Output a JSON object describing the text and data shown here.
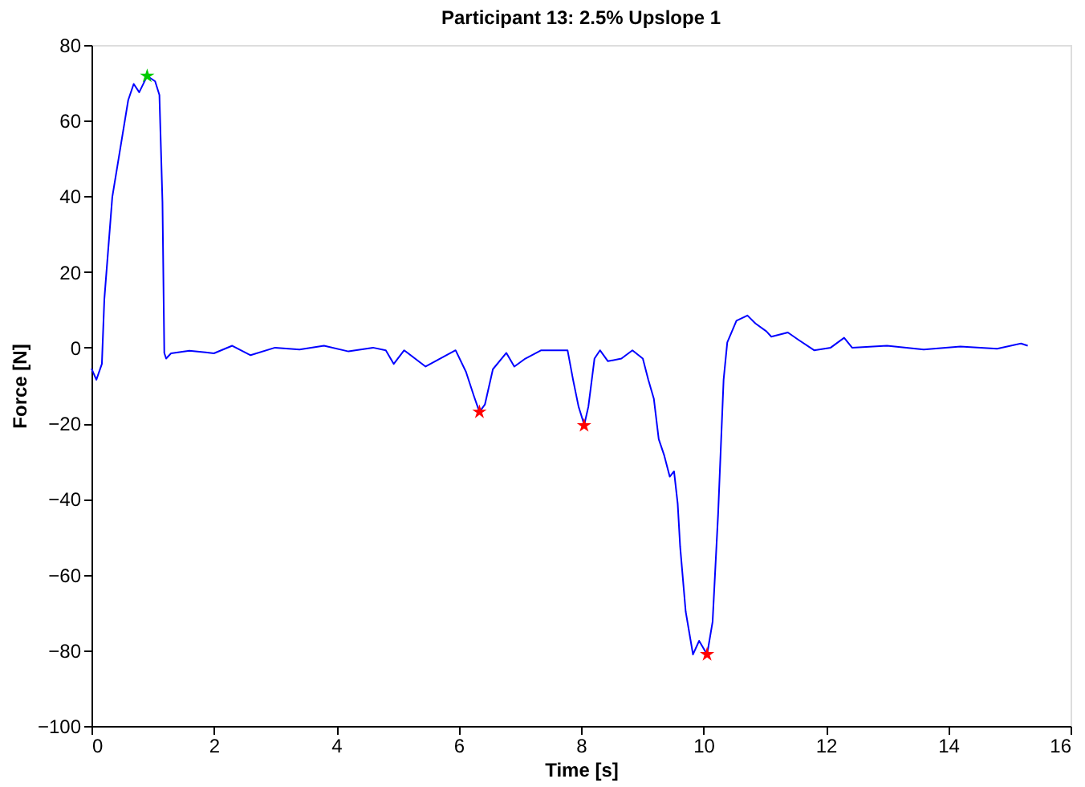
{
  "chart_data": {
    "type": "line",
    "title": "Participant 13: 2.5% Upslope 1",
    "xlabel": "Time [s]",
    "ylabel": "Force [N]",
    "xlim": [
      0,
      16
    ],
    "xticks": [
      0,
      2,
      4,
      6,
      8,
      10,
      12,
      14,
      16
    ],
    "ylim": [
      -100,
      80
    ],
    "yticks": [
      -100,
      -80,
      -60,
      -40,
      -20,
      0,
      20,
      40,
      60,
      80
    ],
    "grid": false,
    "legend": false,
    "series": [
      {
        "type": "line",
        "color": "#0000ff",
        "marker": "none",
        "line_style": "solid",
        "x": [
          0,
          0.08,
          0.17,
          0.21,
          0.34,
          0.47,
          0.6,
          0.69,
          0.78,
          0.91,
          1.04,
          1.11,
          1.16,
          1.19,
          1.22,
          1.3,
          1.6,
          2.0,
          2.3,
          2.6,
          3.0,
          3.4,
          3.8,
          4.2,
          4.6,
          4.81,
          4.94,
          5.11,
          5.46,
          5.95,
          6.12,
          6.25,
          6.31,
          6.34,
          6.43,
          6.56,
          6.78,
          6.91,
          7.09,
          7.35,
          7.78,
          7.87,
          7.96,
          8.03,
          8.05,
          8.12,
          8.22,
          8.31,
          8.44,
          8.66,
          8.84,
          9.01,
          9.1,
          9.19,
          9.27,
          9.36,
          9.45,
          9.52,
          9.58,
          9.62,
          9.71,
          9.83,
          9.93,
          9.98,
          10.06,
          10.15,
          10.24,
          10.33,
          10.39,
          10.54,
          10.72,
          10.85,
          11.03,
          11.11,
          11.38,
          11.55,
          11.81,
          12.08,
          12.3,
          12.43,
          13.0,
          13.6,
          14.2,
          14.8,
          15.19,
          15.3
        ],
        "values": [
          -5.5,
          -8.5,
          -4.3,
          12.8,
          39.8,
          52.6,
          65.4,
          69.7,
          67.5,
          71.8,
          70.4,
          66.8,
          38.4,
          -1.4,
          -2.9,
          -1.5,
          -0.8,
          -1.5,
          0.5,
          -2,
          0,
          -0.5,
          0.5,
          -1,
          0,
          -0.7,
          -4.3,
          -0.7,
          -5,
          -0.7,
          -6.4,
          -12.8,
          -15.6,
          -17,
          -15,
          -5.7,
          -1.4,
          -5,
          -2.9,
          -0.7,
          -0.7,
          -8.5,
          -15.6,
          -19.2,
          -20.6,
          -15.6,
          -2.9,
          -0.7,
          -3.6,
          -2.9,
          -0.7,
          -2.9,
          -8.5,
          -13.5,
          -24.2,
          -28.5,
          -34.1,
          -32.7,
          -41.3,
          -52.6,
          -69.7,
          -81.1,
          -77.5,
          -78.9,
          -81.1,
          -72.5,
          -44.1,
          -8.5,
          1.4,
          7.1,
          8.5,
          6.4,
          4.3,
          2.9,
          4,
          2.1,
          -0.7,
          0,
          2.6,
          0,
          0.5,
          -0.5,
          0.3,
          -0.3,
          1.1,
          0.5
        ]
      },
      {
        "type": "scatter",
        "color": "#00cc00",
        "marker": "star",
        "x": [
          0.91
        ],
        "values": [
          71.8
        ]
      },
      {
        "type": "scatter",
        "color": "#ff0000",
        "marker": "star",
        "x": [
          6.34,
          8.05,
          10.06
        ],
        "values": [
          -17,
          -20.6,
          -81.1
        ]
      }
    ]
  }
}
